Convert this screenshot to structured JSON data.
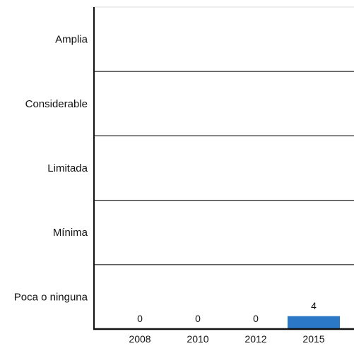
{
  "chart_data": {
    "type": "bar",
    "categories": [
      "2008",
      "2010",
      "2012",
      "2015"
    ],
    "values": [
      0,
      0,
      0,
      4
    ],
    "data_labels": [
      "0",
      "0",
      "0",
      "4"
    ],
    "y_bands": [
      "Poca o ninguna",
      "Mínima",
      "Limitada",
      "Considerable",
      "Amplia"
    ],
    "ylim": [
      0,
      100
    ],
    "grid": true,
    "bar_color": "#2a78c6",
    "legend": "none"
  }
}
